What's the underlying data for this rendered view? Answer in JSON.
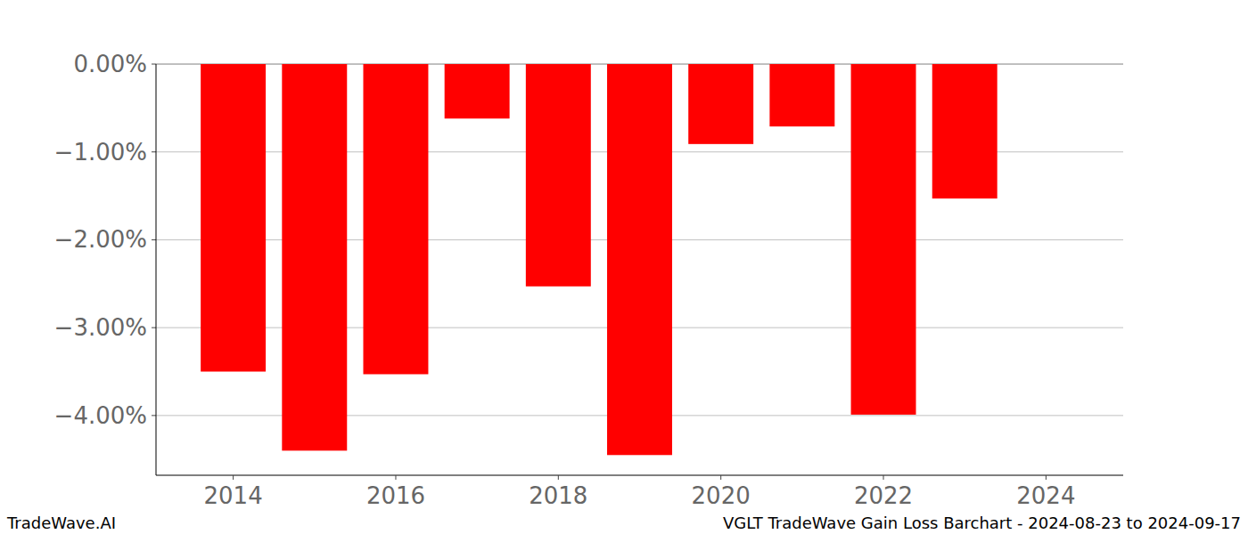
{
  "chart_data": {
    "type": "bar",
    "title": "VGLT TradeWave Gain Loss Barchart - 2024-08-23 to 2024-09-17",
    "annotations": [
      "TradeWave.AI"
    ],
    "x": [
      2014,
      2015,
      2016,
      2017,
      2018,
      2019,
      2020,
      2021,
      2022,
      2023
    ],
    "values": [
      -3.5,
      -4.4,
      -3.53,
      -0.62,
      -2.53,
      -4.45,
      -0.91,
      -0.71,
      -3.99,
      -1.53
    ],
    "color": "#ff0000",
    "xlim": [
      2013.05,
      2024.95
    ],
    "xticks": [
      2014,
      2016,
      2018,
      2020,
      2022,
      2024
    ],
    "ylim": [
      -4.68,
      0
    ],
    "yticks": [
      {
        "value": 0,
        "label": "0.00%"
      },
      {
        "value": -1,
        "label": "−1.00%"
      },
      {
        "value": -2,
        "label": "−2.00%"
      },
      {
        "value": -3,
        "label": "−3.00%"
      },
      {
        "value": -4,
        "label": "−4.00%"
      }
    ],
    "grid": true
  }
}
